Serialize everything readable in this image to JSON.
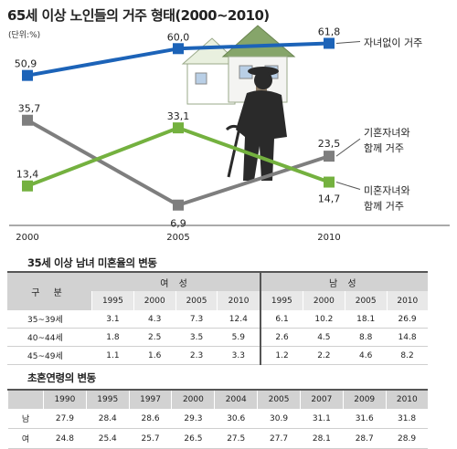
{
  "title": "65세 이상 노인들의 거주 형태(2000~2010)",
  "unit": "(단위:%)",
  "chart_data": {
    "type": "line",
    "x": [
      "2000",
      "2005",
      "2010"
    ],
    "ylim": [
      0,
      70
    ],
    "series": [
      {
        "name": "자녀없이 거주",
        "values": [
          50.9,
          60.0,
          61.8
        ],
        "labels": [
          "50,9",
          "60,0",
          "61,8"
        ],
        "color": "#1c63b8"
      },
      {
        "name": "기혼자녀와 함께 거주",
        "name_lines": [
          "기혼자녀와",
          "함께 거주"
        ],
        "values": [
          35.7,
          6.9,
          23.5
        ],
        "labels": [
          "35,7",
          "6,9",
          "23,5"
        ],
        "color": "#7e7e7e"
      },
      {
        "name": "미혼자녀와 함께 거주",
        "name_lines": [
          "미혼자녀와",
          "함께 거주"
        ],
        "values": [
          13.4,
          33.1,
          14.7
        ],
        "labels": [
          "13,4",
          "33,1",
          "14,7"
        ],
        "color": "#74b13f"
      }
    ]
  },
  "table1": {
    "title": "35세 이상 남녀 미혼율의 변동",
    "col_header": "구 분",
    "groups": [
      "여 성",
      "남 성"
    ],
    "years": [
      "1995",
      "2000",
      "2005",
      "2010",
      "1995",
      "2000",
      "2005",
      "2010"
    ],
    "rows": [
      {
        "label": "35~39세",
        "values": [
          "3.1",
          "4.3",
          "7.3",
          "12.4",
          "6.1",
          "10.2",
          "18.1",
          "26.9"
        ]
      },
      {
        "label": "40~44세",
        "values": [
          "1.8",
          "2.5",
          "3.5",
          "5.9",
          "2.6",
          "4.5",
          "8.8",
          "14.8"
        ]
      },
      {
        "label": "45~49세",
        "values": [
          "1.1",
          "1.6",
          "2.3",
          "3.3",
          "1.2",
          "2.2",
          "4.6",
          "8.2"
        ]
      }
    ]
  },
  "table2": {
    "title": "초혼연령의 변동",
    "years": [
      "1990",
      "1995",
      "1997",
      "2000",
      "2004",
      "2005",
      "2007",
      "2009",
      "2010"
    ],
    "rows": [
      {
        "label": "남",
        "values": [
          "27.9",
          "28.4",
          "28.6",
          "29.3",
          "30.6",
          "30.9",
          "31.1",
          "31.6",
          "31.8"
        ]
      },
      {
        "label": "여",
        "values": [
          "24.8",
          "25.4",
          "25.7",
          "26.5",
          "27.5",
          "27.7",
          "28.1",
          "28.7",
          "28.9"
        ]
      }
    ]
  }
}
